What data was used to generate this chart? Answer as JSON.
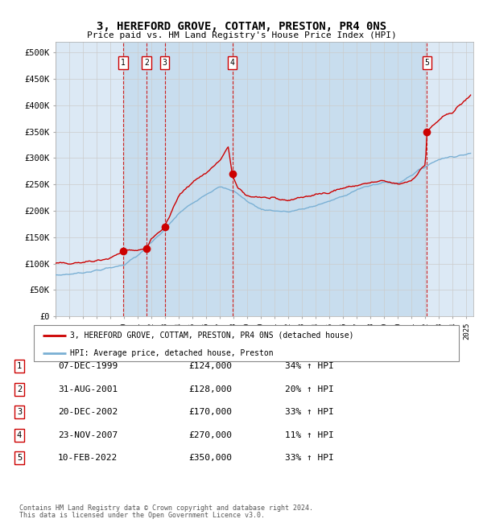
{
  "title": "3, HEREFORD GROVE, COTTAM, PRESTON, PR4 0NS",
  "subtitle": "Price paid vs. HM Land Registry's House Price Index (HPI)",
  "xlim_start": 1995.0,
  "xlim_end": 2025.5,
  "ylim": [
    0,
    520000
  ],
  "yticks": [
    0,
    50000,
    100000,
    150000,
    200000,
    250000,
    300000,
    350000,
    400000,
    450000,
    500000
  ],
  "ytick_labels": [
    "£0",
    "£50K",
    "£100K",
    "£150K",
    "£200K",
    "£250K",
    "£300K",
    "£350K",
    "£400K",
    "£450K",
    "£500K"
  ],
  "grid_color": "#cccccc",
  "bg_color": "#dce9f5",
  "shade_color": "#b8d4ea",
  "red_color": "#cc0000",
  "blue_color": "#7ab0d4",
  "purchases": [
    {
      "num": 1,
      "year": 1999.92,
      "price": 124000,
      "label": "07-DEC-1999",
      "amount": "£124,000",
      "hpi": "34% ↑ HPI"
    },
    {
      "num": 2,
      "year": 2001.66,
      "price": 128000,
      "label": "31-AUG-2001",
      "amount": "£128,000",
      "hpi": "20% ↑ HPI"
    },
    {
      "num": 3,
      "year": 2002.97,
      "price": 170000,
      "label": "20-DEC-2002",
      "amount": "£170,000",
      "hpi": "33% ↑ HPI"
    },
    {
      "num": 4,
      "year": 2007.9,
      "price": 270000,
      "label": "23-NOV-2007",
      "amount": "£270,000",
      "hpi": "11% ↑ HPI"
    },
    {
      "num": 5,
      "year": 2022.12,
      "price": 350000,
      "label": "10-FEB-2022",
      "amount": "£350,000",
      "hpi": "33% ↑ HPI"
    }
  ],
  "legend_line1": "3, HEREFORD GROVE, COTTAM, PRESTON, PR4 0NS (detached house)",
  "legend_line2": "HPI: Average price, detached house, Preston",
  "footer1": "Contains HM Land Registry data © Crown copyright and database right 2024.",
  "footer2": "This data is licensed under the Open Government Licence v3.0.",
  "hpi_key_years": [
    1995,
    1996,
    1997,
    1998,
    1999,
    2000,
    2001,
    2002,
    2003,
    2004,
    2005,
    2006,
    2007,
    2008,
    2009,
    2010,
    2011,
    2012,
    2013,
    2014,
    2015,
    2016,
    2017,
    2018,
    2019,
    2020,
    2021,
    2022,
    2023,
    2024,
    2025.3
  ],
  "hpi_key_prices": [
    78000,
    80000,
    83000,
    87000,
    92000,
    98000,
    115000,
    140000,
    165000,
    195000,
    215000,
    232000,
    245000,
    238000,
    218000,
    203000,
    200000,
    198000,
    203000,
    210000,
    218000,
    228000,
    240000,
    248000,
    254000,
    252000,
    268000,
    284000,
    298000,
    303000,
    308000
  ],
  "red_key_years": [
    1995,
    1997,
    1999,
    1999.92,
    2001,
    2001.66,
    2002,
    2002.97,
    2004,
    2005,
    2006,
    2007,
    2007.6,
    2007.9,
    2008.3,
    2009,
    2010,
    2011,
    2012,
    2013,
    2014,
    2015,
    2016,
    2017,
    2018,
    2019,
    2020,
    2021,
    2022.0,
    2022.12,
    2022.6,
    2023,
    2024,
    2025.3
  ],
  "red_key_prices": [
    100000,
    103000,
    110000,
    124000,
    126000,
    128000,
    148000,
    170000,
    228000,
    255000,
    272000,
    295000,
    320000,
    270000,
    242000,
    228000,
    226000,
    222000,
    220000,
    226000,
    230000,
    236000,
    243000,
    248000,
    253000,
    256000,
    250000,
    258000,
    288000,
    350000,
    362000,
    372000,
    388000,
    418000
  ]
}
